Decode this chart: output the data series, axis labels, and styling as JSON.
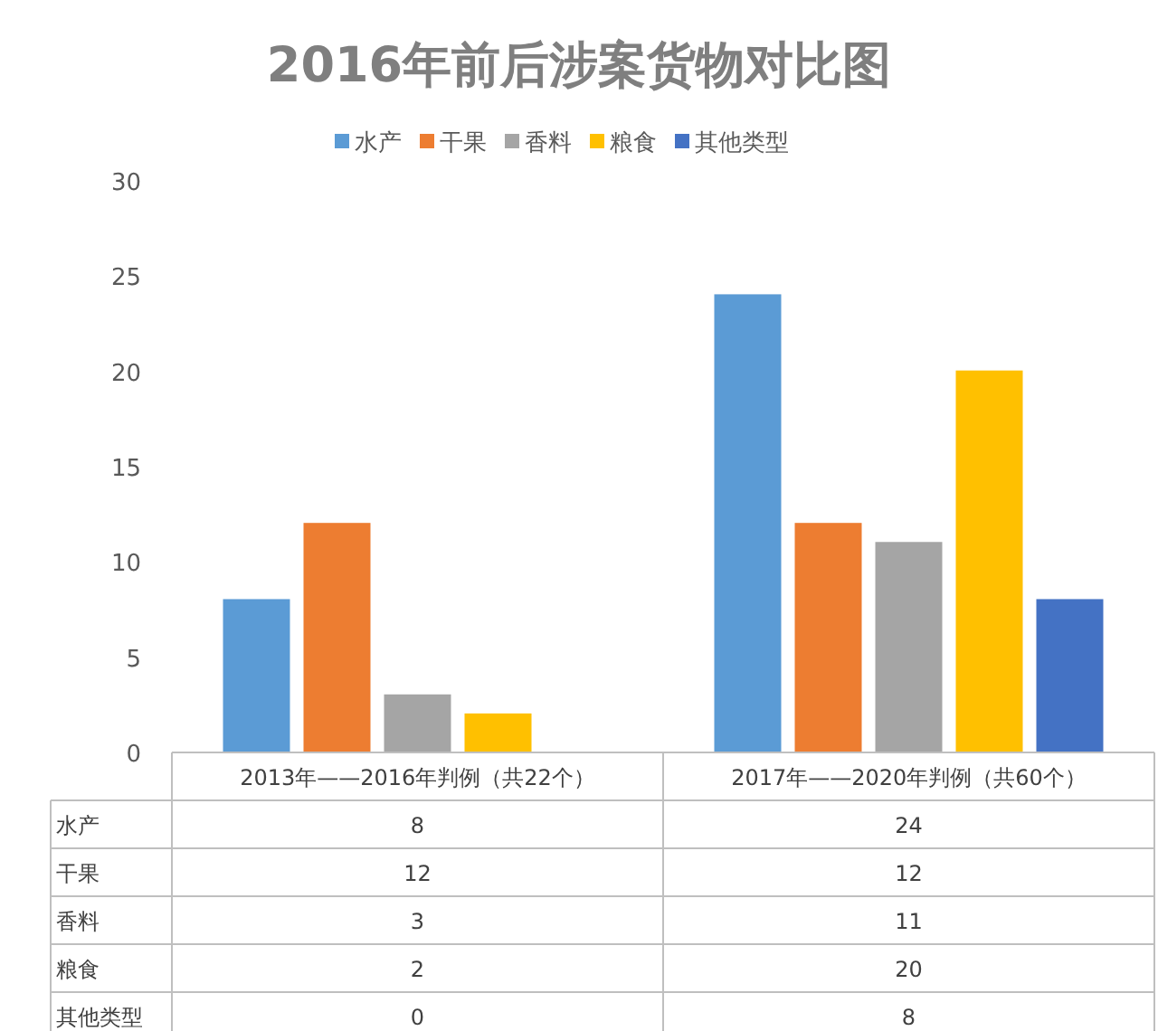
{
  "chart_data": {
    "type": "bar",
    "title": "2016年前后涉案货物对比图",
    "categories": [
      "2013年——2016年判例（共22个）",
      "2017年——2020年判例（共60个）"
    ],
    "series": [
      {
        "name": "水产",
        "color": "#5b9bd5",
        "values": [
          8,
          24
        ]
      },
      {
        "name": "干果",
        "color": "#ed7d31",
        "values": [
          12,
          12
        ]
      },
      {
        "name": "香料",
        "color": "#a5a5a5",
        "values": [
          3,
          11
        ]
      },
      {
        "name": "粮食",
        "color": "#ffc000",
        "values": [
          2,
          20
        ]
      },
      {
        "name": "其他类型",
        "color": "#4472c4",
        "values": [
          0,
          8
        ]
      }
    ],
    "ylim": [
      0,
      30
    ],
    "yticks": [
      0,
      5,
      10,
      15,
      20,
      25,
      30
    ],
    "grid": false,
    "legend": "top",
    "data_labels": true
  }
}
